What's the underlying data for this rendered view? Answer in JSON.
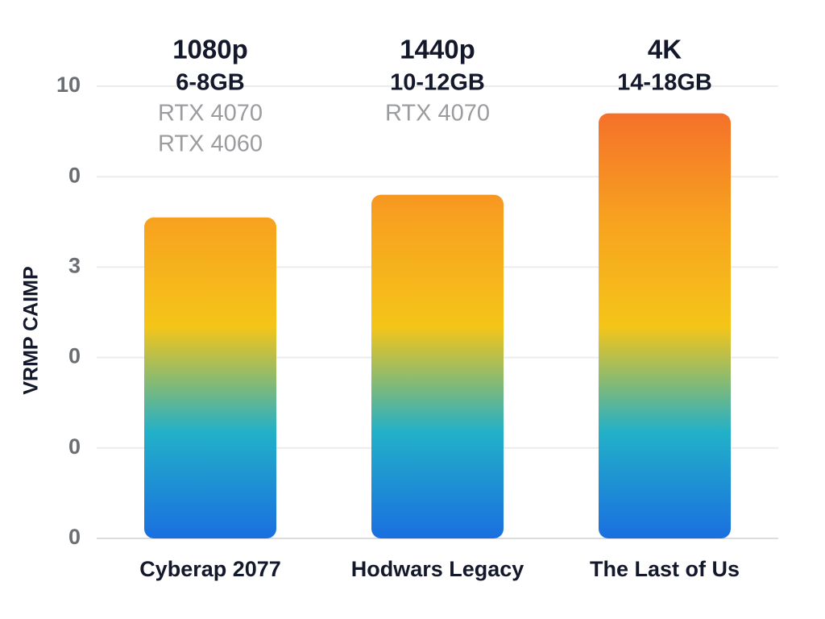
{
  "chart_data": {
    "type": "bar",
    "y_label": "VRMP CAIMP",
    "categories": [
      "Cyberap 2077",
      "Hodwars Legacy",
      "The Last of Us"
    ],
    "values": [
      7.1,
      7.6,
      9.4
    ],
    "annotations": [
      {
        "resolution": "1080p",
        "vram": "6-8GB",
        "gpus": [
          "RTX 4070",
          "RTX 4060"
        ]
      },
      {
        "resolution": "1440p",
        "vram": "10-12GB",
        "gpus": [
          "RTX 4070"
        ]
      },
      {
        "resolution": "4K",
        "vram": "14-18GB",
        "gpus": []
      }
    ],
    "colors": [
      "#1a6fe0",
      "#22b0c8",
      "#f5c518",
      "#f7a21f",
      "#f5712a"
    ],
    "ylim": [
      0,
      10
    ],
    "yticks": [
      0,
      {
        "value": 2,
        "label": "0"
      },
      {
        "value": 4,
        "label": "0"
      },
      {
        "value": 6,
        "label": "3"
      },
      {
        "value": 8,
        "label": "0"
      },
      10
    ],
    "grid": true
  }
}
